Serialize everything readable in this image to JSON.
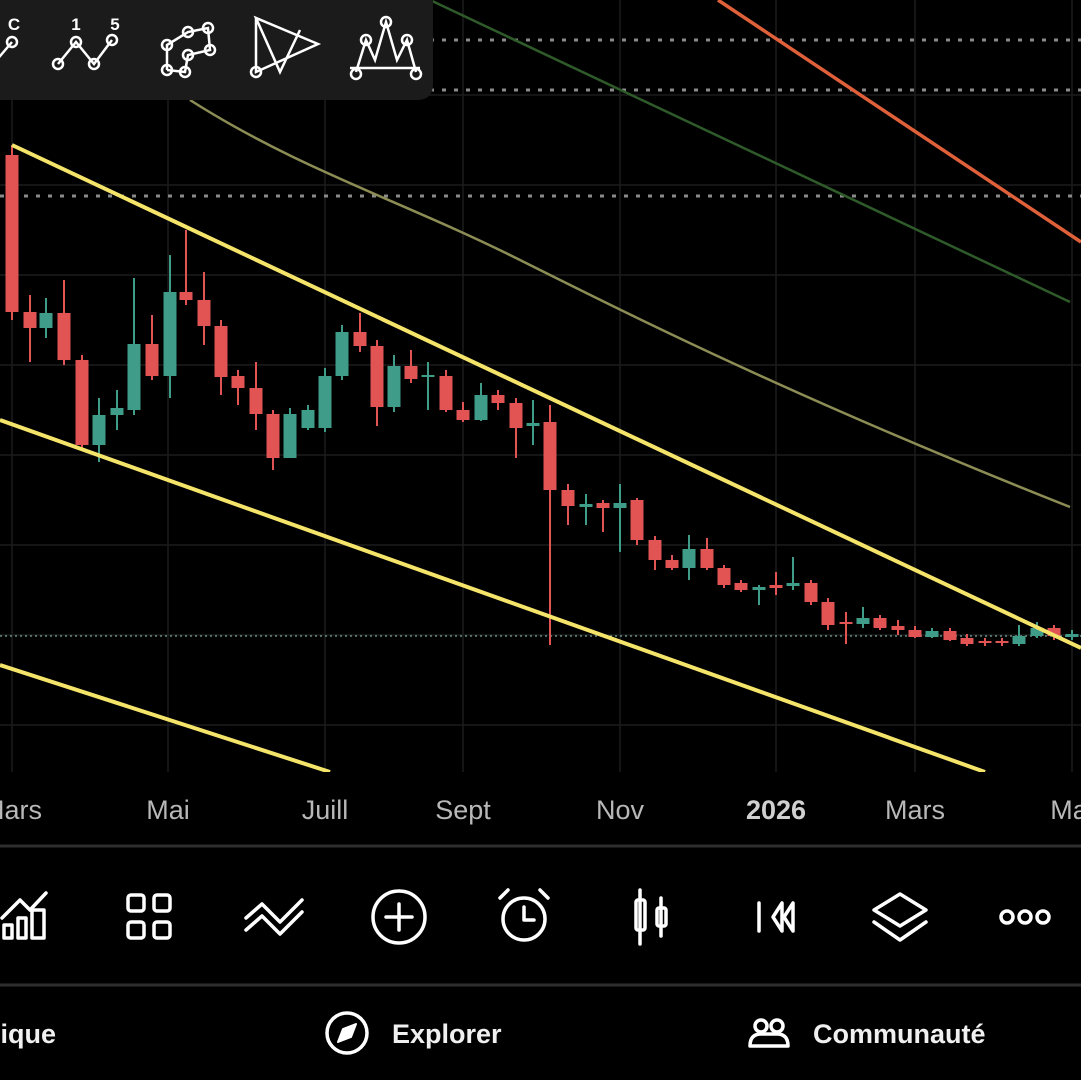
{
  "drawing_toolbar": {
    "labels": [
      "C",
      "1",
      "5"
    ]
  },
  "time_axis": {
    "labels": [
      "Mars",
      "Mai",
      "Juill",
      "Sept",
      "Nov",
      "2026",
      "Mars",
      "Mai"
    ]
  },
  "bottom_nav": {
    "items": [
      "Graphique",
      "Explorer",
      "Communauté"
    ]
  }
}
